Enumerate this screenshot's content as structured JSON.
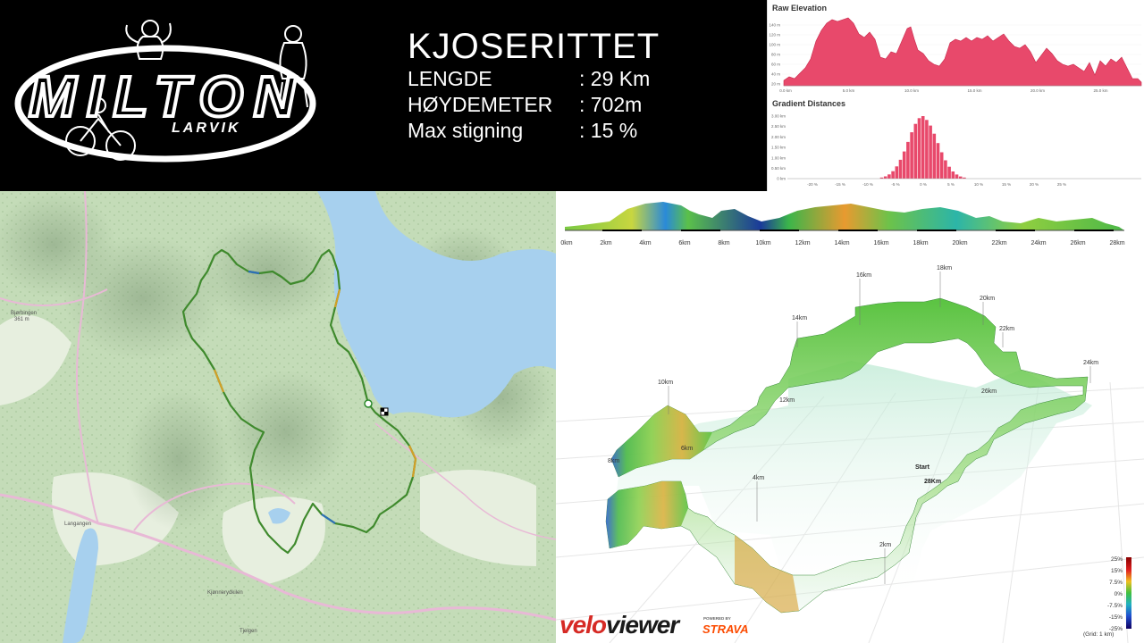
{
  "logo": {
    "name": "MILTON",
    "sub": "LARVIK"
  },
  "race": {
    "title": "KJOSERITTET",
    "stats": [
      {
        "label": "LENGDE",
        "value": ": 29 Km"
      },
      {
        "label": "HØYDEMETER",
        "value": ": 702m"
      },
      {
        "label": "Max stigning",
        "value": ": 15 %"
      }
    ]
  },
  "raw_elevation": {
    "title": "Raw Elevation",
    "y_ticks": [
      "140 m",
      "120 m",
      "100 m",
      "80 m",
      "60 m",
      "40 m",
      "20 m"
    ],
    "x_ticks": [
      "0.0 km",
      "5.0 km",
      "10.0 km",
      "15.0 km",
      "20.0 km",
      "25.0 km"
    ],
    "color": "#e8496b"
  },
  "gradient_distances": {
    "title": "Gradient Distances",
    "y_ticks": [
      "3.00 km",
      "2.50 km",
      "2.00 km",
      "1.50 km",
      "1.00 km",
      "0.50 km",
      "0 km"
    ],
    "x_ticks": [
      "-20 %",
      "-15 %",
      "-10 %",
      "-5 %",
      "0 %",
      "5 %",
      "10 %",
      "15 %",
      "20 %",
      "25 %"
    ],
    "color": "#e8496b"
  },
  "map": {
    "places": [
      "Bjørbingen",
      "361 m",
      "Langangen",
      "Kjønnerydkilen",
      "Tjelgen"
    ]
  },
  "velo_profile": {
    "km_ticks": [
      "0km",
      "2km",
      "4km",
      "6km",
      "8km",
      "10km",
      "12km",
      "14km",
      "16km",
      "18km",
      "20km",
      "22km",
      "24km",
      "26km",
      "28km"
    ]
  },
  "velo_3d": {
    "labels": [
      {
        "text": "16km"
      },
      {
        "text": "18km"
      },
      {
        "text": "20km"
      },
      {
        "text": "14km"
      },
      {
        "text": "22km"
      },
      {
        "text": "24km"
      },
      {
        "text": "10km"
      },
      {
        "text": "26km"
      },
      {
        "text": "12km"
      },
      {
        "text": "6km"
      },
      {
        "text": "8km"
      },
      {
        "text": "4km"
      },
      {
        "text": "2km"
      }
    ],
    "start": "Start",
    "finish": "28Km",
    "legend": [
      "25%",
      "15%",
      "7.5%",
      "0%",
      "-7.5%",
      "-15%",
      "-25%"
    ],
    "grid_note": "(Grid: 1 km)"
  },
  "brand": {
    "velo": "velo",
    "viewer": "viewer",
    "powered": "POWERED BY",
    "strava": "STRAVA"
  }
}
